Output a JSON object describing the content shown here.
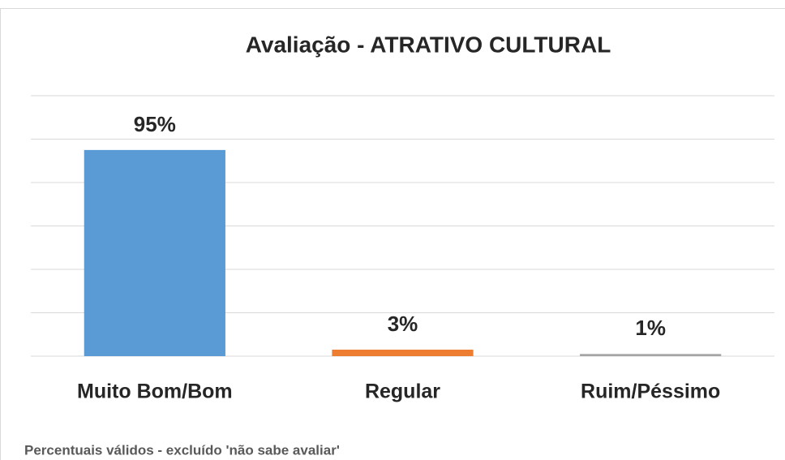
{
  "chart_data": {
    "type": "bar",
    "title": "Avaliação - ATRATIVO CULTURAL",
    "categories": [
      "Muito Bom/Bom",
      "Regular",
      "Ruim/Péssimo"
    ],
    "values": [
      95,
      3,
      1
    ],
    "value_labels": [
      "95%",
      "3%",
      "1%"
    ],
    "colors": [
      "#5b9bd5",
      "#ed7d31",
      "#a5a5a5"
    ],
    "ylim": [
      0,
      120
    ],
    "yticks": [
      0,
      20,
      40,
      60,
      80,
      100,
      120
    ],
    "grid": true,
    "footnote": "Percentuais válidos - excluído 'não sabe avaliar'"
  }
}
